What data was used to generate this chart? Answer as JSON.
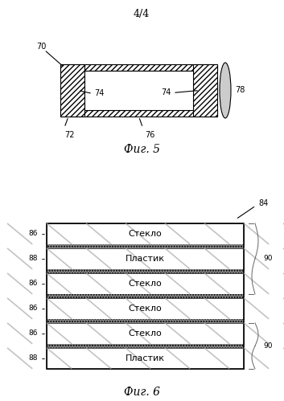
{
  "page_label": "4/4",
  "fig5_label": "Фиг. 5",
  "fig6_label": "Фиг. 6",
  "label_70": "70",
  "label_72": "72",
  "label_74a": "74",
  "label_74b": "74",
  "label_76": "76",
  "label_78": "78",
  "label_84": "84",
  "label_86_1": "86",
  "label_86_2": "86",
  "label_86_3": "86",
  "label_86_4": "86",
  "label_88_1": "88",
  "label_88_2": "88",
  "label_90_1": "90",
  "label_90_2": "90",
  "fig6_layers": [
    {
      "label": "Стекло",
      "type": "glass"
    },
    {
      "label": "Пластик",
      "type": "plastic"
    },
    {
      "label": "Стекло",
      "type": "glass"
    },
    {
      "label": "Стекло",
      "type": "glass"
    },
    {
      "label": "Стекло",
      "type": "glass"
    },
    {
      "label": "Пластик",
      "type": "plastic"
    }
  ],
  "bg_color": "#ffffff",
  "line_color": "#000000",
  "hatch_color": "#555555",
  "border_color": "#000000"
}
